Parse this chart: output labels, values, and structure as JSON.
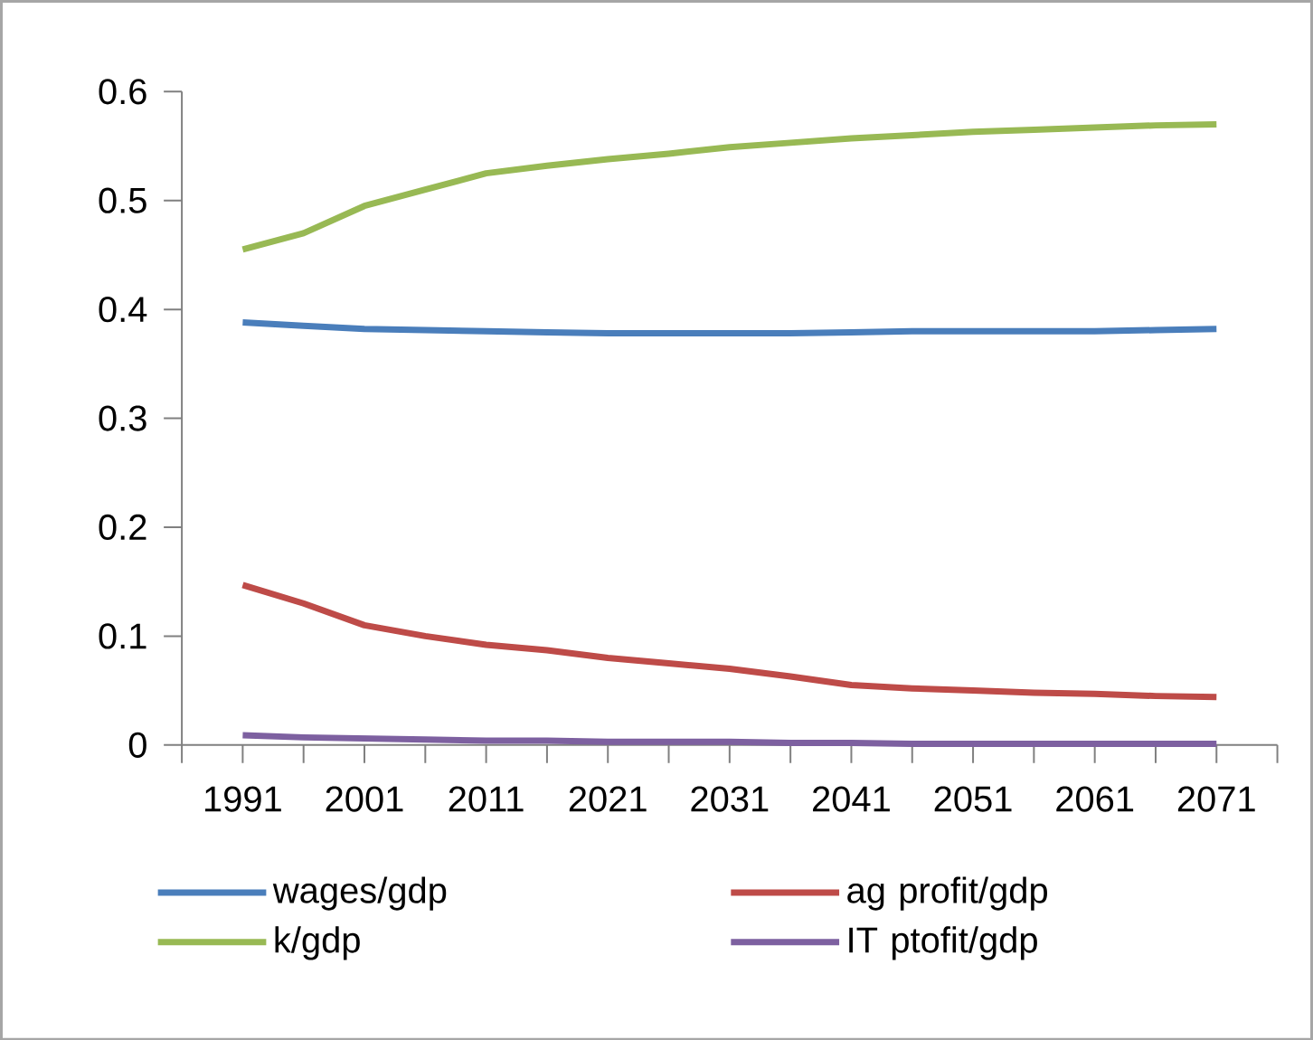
{
  "chart_data": {
    "type": "line",
    "x": [
      1991,
      1996,
      2001,
      2006,
      2011,
      2016,
      2021,
      2026,
      2031,
      2036,
      2041,
      2046,
      2051,
      2056,
      2061,
      2066,
      2071
    ],
    "series": [
      {
        "name": "wages/gdp",
        "color": "#4a7ebb",
        "values": [
          0.388,
          0.385,
          0.382,
          0.381,
          0.38,
          0.379,
          0.378,
          0.378,
          0.378,
          0.378,
          0.379,
          0.38,
          0.38,
          0.38,
          0.38,
          0.381,
          0.382
        ]
      },
      {
        "name": "ag profit/gdp",
        "color": "#be4b48",
        "values": [
          0.147,
          0.13,
          0.11,
          0.1,
          0.092,
          0.087,
          0.08,
          0.075,
          0.07,
          0.063,
          0.055,
          0.052,
          0.05,
          0.048,
          0.047,
          0.045,
          0.044
        ]
      },
      {
        "name": "k/gdp",
        "color": "#98b954",
        "values": [
          0.455,
          0.47,
          0.495,
          0.51,
          0.525,
          0.532,
          0.538,
          0.543,
          0.549,
          0.553,
          0.557,
          0.56,
          0.563,
          0.565,
          0.567,
          0.569,
          0.57
        ]
      },
      {
        "name": "IT ptofit/gdp",
        "color": "#7d60a0",
        "values": [
          0.009,
          0.007,
          0.006,
          0.005,
          0.004,
          0.004,
          0.003,
          0.003,
          0.003,
          0.002,
          0.002,
          0.001,
          0.001,
          0.001,
          0.001,
          0.001,
          0.001
        ]
      }
    ],
    "xlim": [
      1986,
      2076
    ],
    "xticks": [
      1991,
      2001,
      2011,
      2021,
      2031,
      2041,
      2051,
      2061,
      2071,
      {
        "value": 1986,
        "label": null
      },
      {
        "value": 1996,
        "label": null
      },
      {
        "value": 2006,
        "label": null
      },
      {
        "value": 2016,
        "label": null
      },
      {
        "value": 2026,
        "label": null
      },
      {
        "value": 2036,
        "label": null
      },
      {
        "value": 2046,
        "label": null
      },
      {
        "value": 2056,
        "label": null
      },
      {
        "value": 2066,
        "label": null
      },
      {
        "value": 2076,
        "label": null
      }
    ],
    "ylim": [
      0,
      0.6
    ],
    "yticks": [
      0,
      0.1,
      0.2,
      0.3,
      0.4,
      0.5,
      0.6
    ],
    "legend": "bottom",
    "grid": false,
    "marker": "none",
    "line_style": "solid"
  }
}
